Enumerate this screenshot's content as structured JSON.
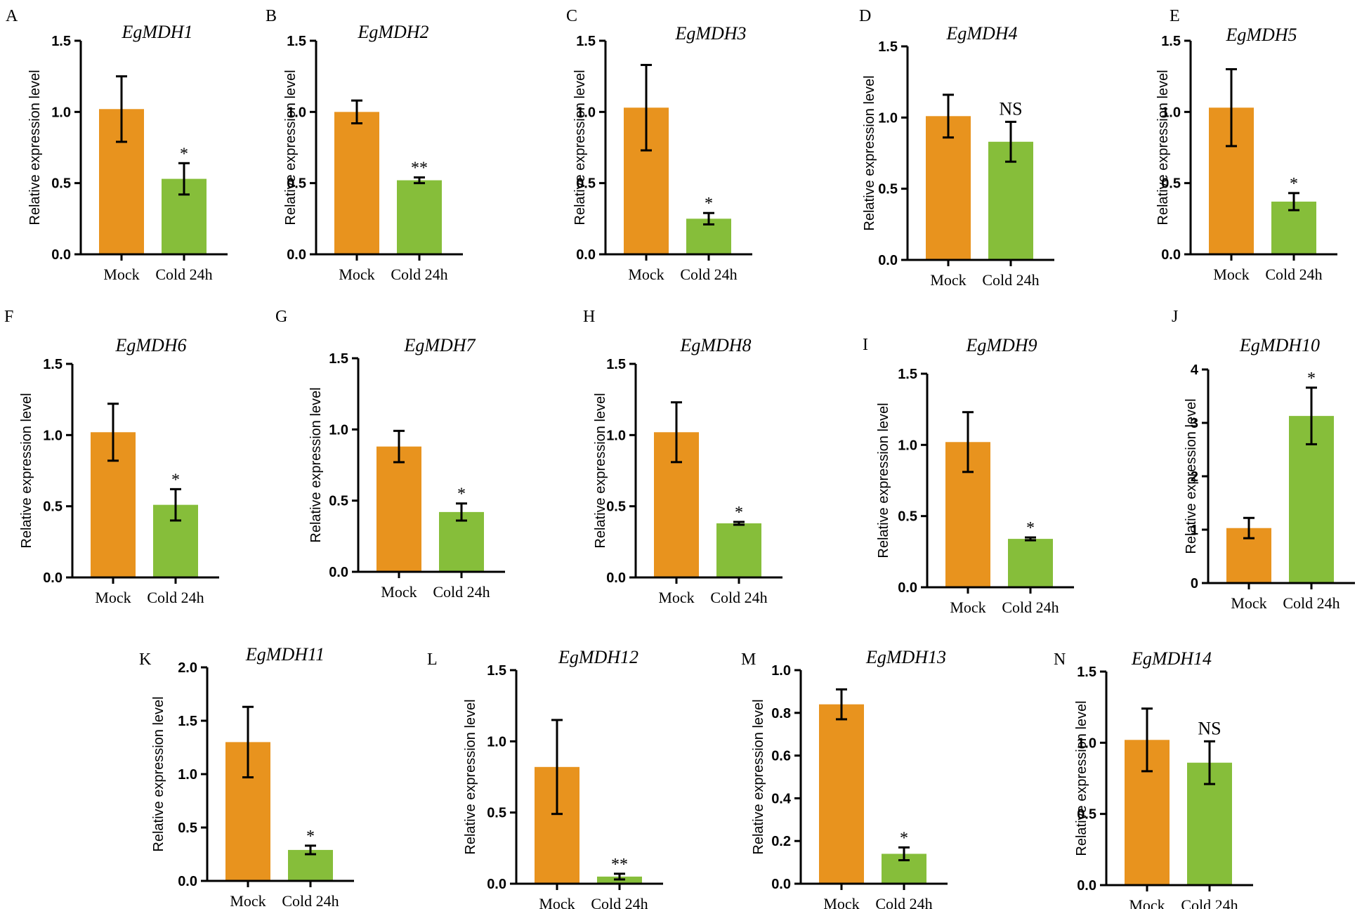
{
  "chart_data": [
    {
      "type": "bar",
      "panel": "A",
      "title": "EgMDH1",
      "ylabel": "Relative expression level",
      "categories": [
        "Mock",
        "Cold 24h"
      ],
      "values": [
        1.02,
        0.53
      ],
      "errors": [
        0.23,
        0.11
      ],
      "significance": [
        "",
        "*"
      ],
      "ylim": [
        0,
        1.5
      ],
      "yticks": [
        "0.0",
        "0.5",
        "1.0",
        "1.5"
      ],
      "colors": [
        "#E8931E",
        "#86BE3A"
      ]
    },
    {
      "type": "bar",
      "panel": "B",
      "title": "EgMDH2",
      "ylabel": "Relative expression level",
      "categories": [
        "Mock",
        "Cold 24h"
      ],
      "values": [
        1.0,
        0.52
      ],
      "errors": [
        0.08,
        0.02
      ],
      "significance": [
        "",
        "**"
      ],
      "ylim": [
        0,
        1.5
      ],
      "yticks": [
        "0.0",
        "0.5",
        "1.0",
        "1.5"
      ],
      "colors": [
        "#E8931E",
        "#86BE3A"
      ]
    },
    {
      "type": "bar",
      "panel": "C",
      "title": "EgMDH3",
      "ylabel": "Relative expression level",
      "categories": [
        "Mock",
        "Cold 24h"
      ],
      "values": [
        1.03,
        0.25
      ],
      "errors": [
        0.3,
        0.04
      ],
      "significance": [
        "",
        "*"
      ],
      "ylim": [
        0,
        1.5
      ],
      "yticks": [
        "0.0",
        "0.5",
        "1.0",
        "1.5"
      ],
      "colors": [
        "#E8931E",
        "#86BE3A"
      ]
    },
    {
      "type": "bar",
      "panel": "D",
      "title": "EgMDH4",
      "ylabel": "Relative expression level",
      "categories": [
        "Mock",
        "Cold 24h"
      ],
      "values": [
        1.01,
        0.83
      ],
      "errors": [
        0.15,
        0.14
      ],
      "significance": [
        "",
        "NS"
      ],
      "ylim": [
        0,
        1.5
      ],
      "yticks": [
        "0.0",
        "0.5",
        "1.0",
        "1.5"
      ],
      "colors": [
        "#E8931E",
        "#86BE3A"
      ]
    },
    {
      "type": "bar",
      "panel": "E",
      "title": "EgMDH5",
      "ylabel": "Relative expression level",
      "categories": [
        "Mock",
        "Cold 24h"
      ],
      "values": [
        1.03,
        0.37
      ],
      "errors": [
        0.27,
        0.06
      ],
      "significance": [
        "",
        "*"
      ],
      "ylim": [
        0,
        1.5
      ],
      "yticks": [
        "0.0",
        "0.5",
        "1.0",
        "1.5"
      ],
      "colors": [
        "#E8931E",
        "#86BE3A"
      ]
    },
    {
      "type": "bar",
      "panel": "F",
      "title": "EgMDH6",
      "ylabel": "Relative expression level",
      "categories": [
        "Mock",
        "Cold 24h"
      ],
      "values": [
        1.02,
        0.51
      ],
      "errors": [
        0.2,
        0.11
      ],
      "significance": [
        "",
        "*"
      ],
      "ylim": [
        0,
        1.5
      ],
      "yticks": [
        "0.0",
        "0.5",
        "1.0",
        "1.5"
      ],
      "colors": [
        "#E8931E",
        "#86BE3A"
      ]
    },
    {
      "type": "bar",
      "panel": "G",
      "title": "EgMDH7",
      "ylabel": "Relative expression level",
      "categories": [
        "Mock",
        "Cold 24h"
      ],
      "values": [
        0.88,
        0.42
      ],
      "errors": [
        0.11,
        0.06
      ],
      "significance": [
        "",
        "*"
      ],
      "ylim": [
        0,
        1.5
      ],
      "yticks": [
        "0.0",
        "0.5",
        "1.0",
        "1.5"
      ],
      "colors": [
        "#E8931E",
        "#86BE3A"
      ]
    },
    {
      "type": "bar",
      "panel": "H",
      "title": "EgMDH8",
      "ylabel": "Relative expression level",
      "categories": [
        "Mock",
        "Cold 24h"
      ],
      "values": [
        1.02,
        0.38
      ],
      "errors": [
        0.21,
        0.01
      ],
      "significance": [
        "",
        "*"
      ],
      "ylim": [
        0,
        1.5
      ],
      "yticks": [
        "0.0",
        "0.5",
        "1.0",
        "1.5"
      ],
      "colors": [
        "#E8931E",
        "#86BE3A"
      ]
    },
    {
      "type": "bar",
      "panel": "I",
      "title": "EgMDH9",
      "ylabel": "Relative expression level",
      "categories": [
        "Mock",
        "Cold 24h"
      ],
      "values": [
        1.02,
        0.34
      ],
      "errors": [
        0.21,
        0.01
      ],
      "significance": [
        "",
        "*"
      ],
      "ylim": [
        0,
        1.5
      ],
      "yticks": [
        "0.0",
        "0.5",
        "1.0",
        "1.5"
      ],
      "colors": [
        "#E8931E",
        "#86BE3A"
      ]
    },
    {
      "type": "bar",
      "panel": "J",
      "title": "EgMDH10",
      "ylabel": "Relative expression level",
      "categories": [
        "Mock",
        "Cold 24h"
      ],
      "values": [
        1.03,
        3.13
      ],
      "errors": [
        0.19,
        0.53
      ],
      "significance": [
        "",
        "*"
      ],
      "ylim": [
        0,
        4
      ],
      "yticks": [
        "0",
        "1",
        "2",
        "3",
        "4"
      ],
      "colors": [
        "#E8931E",
        "#86BE3A"
      ]
    },
    {
      "type": "bar",
      "panel": "K",
      "title": "EgMDH11",
      "ylabel": "Relative expression level",
      "categories": [
        "Mock",
        "Cold 24h"
      ],
      "values": [
        1.3,
        0.29
      ],
      "errors": [
        0.33,
        0.04
      ],
      "significance": [
        "",
        "*"
      ],
      "ylim": [
        0,
        2
      ],
      "yticks": [
        "0.0",
        "0.5",
        "1.0",
        "1.5",
        "2.0"
      ],
      "colors": [
        "#E8931E",
        "#86BE3A"
      ]
    },
    {
      "type": "bar",
      "panel": "L",
      "title": "EgMDH12",
      "ylabel": "Relative expression level",
      "categories": [
        "Mock",
        "Cold 24h"
      ],
      "values": [
        0.82,
        0.05
      ],
      "errors": [
        0.33,
        0.02
      ],
      "significance": [
        "",
        "**"
      ],
      "ylim": [
        0,
        1.5
      ],
      "yticks": [
        "0.0",
        "0.5",
        "1.0",
        "1.5"
      ],
      "colors": [
        "#E8931E",
        "#86BE3A"
      ]
    },
    {
      "type": "bar",
      "panel": "M",
      "title": "EgMDH13",
      "ylabel": "Relative expression level",
      "categories": [
        "Mock",
        "Cold 24h"
      ],
      "values": [
        0.84,
        0.14
      ],
      "errors": [
        0.07,
        0.03
      ],
      "significance": [
        "",
        "*"
      ],
      "ylim": [
        0,
        1.0
      ],
      "yticks": [
        "0.0",
        "0.2",
        "0.4",
        "0.6",
        "0.8",
        "1.0"
      ],
      "colors": [
        "#E8931E",
        "#86BE3A"
      ]
    },
    {
      "type": "bar",
      "panel": "N",
      "title": "EgMDH14",
      "ylabel": "Relative expression level",
      "categories": [
        "Mock",
        "Cold 24h"
      ],
      "values": [
        1.02,
        0.86
      ],
      "errors": [
        0.22,
        0.15
      ],
      "significance": [
        "",
        "NS"
      ],
      "ylim": [
        0,
        1.5
      ],
      "yticks": [
        "0.0",
        "0.5",
        "1.0",
        "1.5"
      ],
      "colors": [
        "#E8931E",
        "#86BE3A"
      ]
    }
  ]
}
